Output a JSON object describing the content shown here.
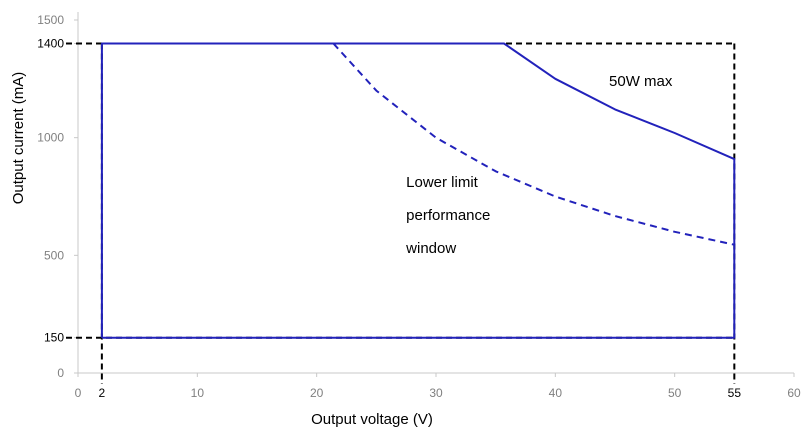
{
  "chart_data": {
    "type": "line",
    "xlabel": "Output voltage (V)",
    "ylabel": "Output current (mA)",
    "xlim": [
      0,
      60
    ],
    "ylim": [
      0,
      1500
    ],
    "x_ticks": [
      {
        "value": 0,
        "label": "0",
        "emphasis": false
      },
      {
        "value": 2,
        "label": "2",
        "emphasis": true
      },
      {
        "value": 10,
        "label": "10",
        "emphasis": false
      },
      {
        "value": 20,
        "label": "20",
        "emphasis": false
      },
      {
        "value": 30,
        "label": "30",
        "emphasis": false
      },
      {
        "value": 40,
        "label": "40",
        "emphasis": false
      },
      {
        "value": 50,
        "label": "50",
        "emphasis": false
      },
      {
        "value": 55,
        "label": "55",
        "emphasis": true
      },
      {
        "value": 60,
        "label": "60",
        "emphasis": false
      }
    ],
    "y_ticks": [
      {
        "value": 0,
        "label": "0",
        "emphasis": false
      },
      {
        "value": 150,
        "label": "150",
        "emphasis": true
      },
      {
        "value": 500,
        "label": "500",
        "emphasis": false
      },
      {
        "value": 1000,
        "label": "1000",
        "emphasis": false
      },
      {
        "value": 1400,
        "label": "1400",
        "emphasis": true
      },
      {
        "value": 1500,
        "label": "1500",
        "emphasis": false
      }
    ],
    "series": [
      {
        "style": "solid",
        "color": "#2222bb",
        "points": [
          [
            2,
            150
          ],
          [
            2,
            1400
          ],
          [
            35.7,
            1400
          ],
          [
            40,
            1250
          ],
          [
            45,
            1120
          ],
          [
            50,
            1020
          ],
          [
            55,
            909
          ],
          [
            55,
            150
          ],
          [
            2,
            150
          ]
        ]
      },
      {
        "style": "dashed",
        "color": "#2222bb",
        "points": [
          [
            21.4,
            1400
          ],
          [
            25,
            1200
          ],
          [
            30,
            1000
          ],
          [
            35,
            857
          ],
          [
            40,
            750
          ],
          [
            45,
            667
          ],
          [
            50,
            600
          ],
          [
            55,
            545
          ]
        ]
      }
    ],
    "reference_lines": {
      "color": "#000000",
      "style": "dashed",
      "vertical": [
        2,
        55
      ],
      "horizontal": [
        150,
        1400
      ]
    },
    "annotations": [
      {
        "id": "max",
        "lines": [
          "50W max"
        ],
        "x": 44.5,
        "y": 1220
      },
      {
        "id": "lower",
        "lines": [
          "Lower limit",
          "performance",
          "window"
        ],
        "x": 27.5,
        "y": 790
      }
    ]
  }
}
